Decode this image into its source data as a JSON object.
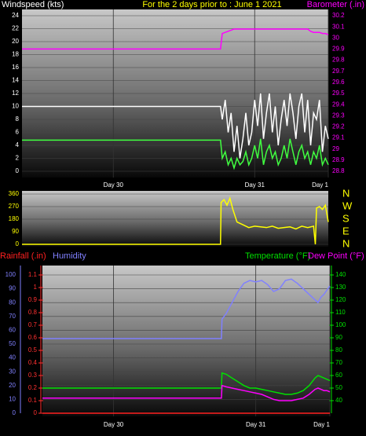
{
  "chart_data": [
    {
      "type": "line",
      "title": "For the 2 days prior to : June 1 2021",
      "ylabel": "Windspeed (kts)",
      "y2label": "Barometer (.in)",
      "x": [
        0,
        33.7,
        34,
        34.5,
        35,
        35.5,
        36,
        36.5,
        37,
        37.5,
        38,
        38.5,
        39,
        39.5,
        40,
        40.5,
        41,
        41.5,
        42,
        42.5,
        43,
        43.5,
        44,
        44.5,
        45,
        45.5,
        46,
        46.5,
        47,
        47.5,
        48,
        48.5,
        49,
        49.5,
        50,
        50.5,
        51,
        51.5,
        52
      ],
      "xlim": [
        0,
        52
      ],
      "xticks": [
        {
          "value": 15.5,
          "label": "Day 30"
        },
        {
          "value": 39.5,
          "label": "Day 31"
        },
        {
          "value": 52,
          "label": "Day 1"
        }
      ],
      "ylim": [
        0,
        24
      ],
      "yticks": [
        0,
        2,
        4,
        6,
        8,
        10,
        12,
        14,
        16,
        18,
        20,
        22,
        24
      ],
      "y2lim": [
        28.8,
        30.2
      ],
      "y2ticks": [
        28.8,
        28.9,
        29,
        29.1,
        29.2,
        29.3,
        29.4,
        29.5,
        29.6,
        29.7,
        29.8,
        29.9,
        30,
        30.1,
        30.2
      ],
      "series": [
        {
          "color": "#ffffff",
          "values": [
            10,
            10,
            8,
            11,
            6,
            9,
            3,
            7,
            2,
            5,
            9,
            4,
            6,
            11,
            7,
            12,
            5,
            9,
            12,
            6,
            10,
            4,
            8,
            11,
            7,
            12,
            9,
            5,
            10,
            12,
            6,
            11,
            4,
            9,
            8,
            11,
            3,
            7,
            5
          ]
        },
        {
          "color": "#40ff40",
          "values": [
            4.8,
            4.8,
            2,
            3,
            1,
            2,
            0.5,
            2,
            1,
            1.5,
            3,
            1,
            2,
            4,
            2,
            5,
            1,
            3,
            4,
            2,
            3,
            1,
            2,
            4,
            2,
            5,
            3,
            1,
            3,
            4,
            2,
            3,
            1,
            3,
            2,
            4,
            1,
            2,
            1
          ]
        },
        {
          "color": "#ff00ff",
          "axis": "y2",
          "values": [
            29.9,
            29.9,
            30.04,
            30.05,
            30.06,
            30.07,
            30.08,
            30.08,
            30.08,
            30.08,
            30.08,
            30.08,
            30.08,
            30.08,
            30.08,
            30.08,
            30.08,
            30.08,
            30.08,
            30.08,
            30.08,
            30.08,
            30.08,
            30.08,
            30.08,
            30.08,
            30.08,
            30.08,
            30.08,
            30.08,
            30.08,
            30.08,
            30.06,
            30.05,
            30.05,
            30.05,
            30.04,
            30.04,
            30.03
          ]
        }
      ]
    },
    {
      "type": "line",
      "x": [
        0,
        33.7,
        33.8,
        34.3,
        34.8,
        35.3,
        35.8,
        36.5,
        37.5,
        38.5,
        39.5,
        40.5,
        41.5,
        42.5,
        43.5,
        44.5,
        45.5,
        46.5,
        47.5,
        48.5,
        49.5,
        49.8,
        50,
        50.5,
        51,
        51.5,
        52
      ],
      "xlim": [
        0,
        52
      ],
      "ylim": [
        0,
        360
      ],
      "yticks": [
        0,
        90,
        180,
        270,
        360
      ],
      "y2lim": [
        0,
        360
      ],
      "y2ticks": [
        {
          "value": 0,
          "label": "N"
        },
        {
          "value": 90,
          "label": "E"
        },
        {
          "value": 180,
          "label": "S"
        },
        {
          "value": 270,
          "label": "W"
        },
        {
          "value": 360,
          "label": "N"
        }
      ],
      "series": [
        {
          "color": "#ffff00",
          "values": [
            0,
            0,
            300,
            320,
            280,
            330,
            250,
            160,
            140,
            120,
            130,
            125,
            120,
            130,
            115,
            120,
            125,
            110,
            130,
            120,
            130,
            0,
            260,
            270,
            250,
            280,
            160
          ]
        }
      ]
    },
    {
      "type": "line",
      "x": [
        3.5,
        33.7,
        33.8,
        34.5,
        35.5,
        36.5,
        37.5,
        38.5,
        39.5,
        40.5,
        41.5,
        42.5,
        43.5,
        44.5,
        45.5,
        46.5,
        47.5,
        48.5,
        49.5,
        50,
        50.5,
        51,
        51.5,
        52
      ],
      "xlim": [
        3.5,
        52
      ],
      "xticks": [
        {
          "value": 15.5,
          "label": "Day 30"
        },
        {
          "value": 39.5,
          "label": "Day 31"
        },
        {
          "value": 52,
          "label": "Day 1"
        }
      ],
      "ylim": [
        0,
        100
      ],
      "yticks": [
        0,
        10,
        20,
        30,
        40,
        50,
        60,
        70,
        80,
        90,
        100
      ],
      "y3lim": [
        0,
        1.1
      ],
      "y3ticks": [
        0,
        0.1,
        0.2,
        0.3,
        0.4,
        0.5,
        0.6,
        0.7,
        0.8,
        0.9,
        1,
        1.1
      ],
      "y2lim": [
        30,
        140
      ],
      "y2ticks": [
        40,
        50,
        60,
        70,
        80,
        90,
        100,
        110,
        120,
        130,
        140
      ],
      "series": [
        {
          "name": "Humidity",
          "color": "#8080ff",
          "values": [
            54,
            54,
            68,
            72,
            80,
            88,
            94,
            96,
            95,
            96,
            93,
            88,
            90,
            96,
            97,
            94,
            90,
            86,
            82,
            80,
            84,
            86,
            89,
            92
          ]
        },
        {
          "name": "Rainfall (.in)",
          "color": "#ff2020",
          "axis": "y3",
          "values": [
            0,
            0,
            0,
            0,
            0,
            0,
            0,
            0,
            0,
            0,
            0,
            0,
            0,
            0,
            0,
            0,
            0,
            0,
            0,
            0,
            0,
            0,
            0,
            0
          ]
        },
        {
          "name": "Temperature (°F)",
          "color": "#00e000",
          "axis": "y2",
          "values": [
            50,
            50,
            62,
            61,
            58,
            55,
            52,
            50,
            50,
            49,
            48,
            47,
            46,
            45,
            45,
            46,
            48,
            52,
            58,
            60,
            59,
            58,
            57,
            56
          ]
        },
        {
          "name": "Dew Point (°F)",
          "color": "#ff00ff",
          "axis": "y2",
          "values": [
            42,
            42,
            52,
            51,
            50,
            49,
            48,
            47,
            46,
            45,
            43,
            41,
            40,
            40,
            40,
            41,
            42,
            45,
            49,
            50,
            49,
            48,
            48,
            47
          ]
        }
      ]
    }
  ]
}
